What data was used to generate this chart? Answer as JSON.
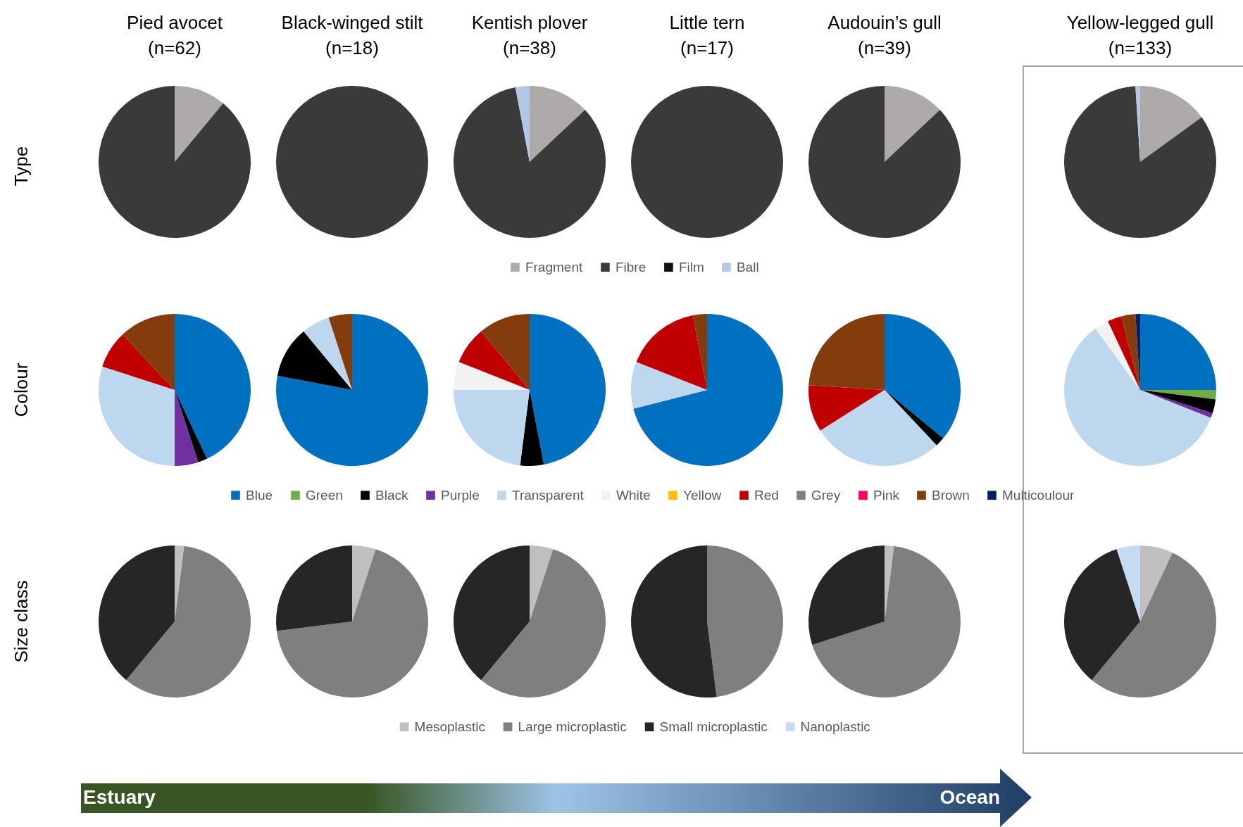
{
  "chart_data": [
    {
      "type": "pie",
      "ylabel": "Type",
      "legend": "bottom",
      "categories": [
        "Fragment",
        "Fibre",
        "Film",
        "Ball"
      ],
      "colors": [
        "#aeaaaa",
        "#3a3a3a",
        "#111111",
        "#b4c7e7"
      ],
      "series": [
        {
          "name": "Pied avocet (n=62)",
          "values": [
            11,
            89,
            0,
            0
          ]
        },
        {
          "name": "Black-winged stilt (n=18)",
          "values": [
            0,
            100,
            0,
            0
          ]
        },
        {
          "name": "Kentish plover (n=38)",
          "values": [
            13,
            84,
            0,
            3
          ]
        },
        {
          "name": "Little tern (n=17)",
          "values": [
            0,
            100,
            0,
            0
          ]
        },
        {
          "name": "Audouin’s gull (n=39)",
          "values": [
            13,
            87,
            0,
            0
          ]
        },
        {
          "name": "Yellow-legged gull (n=133)",
          "values": [
            15,
            84,
            0,
            1
          ]
        }
      ]
    },
    {
      "type": "pie",
      "ylabel": "Colour",
      "legend": "bottom",
      "categories": [
        "Blue",
        "Green",
        "Black",
        "Purple",
        "Transparent",
        "White",
        "Yellow",
        "Red",
        "Grey",
        "Pink",
        "Brown",
        "Multicoulour"
      ],
      "colors": [
        "#0070c0",
        "#70ad47",
        "#000000",
        "#7030a0",
        "#bdd7ee",
        "#f2f2f2",
        "#ffc000",
        "#c00000",
        "#808080",
        "#ff0066",
        "#843c0c",
        "#002060"
      ],
      "series": [
        {
          "values": [
            43,
            0,
            2,
            5,
            30,
            0,
            0,
            8,
            0,
            0,
            12,
            0
          ]
        },
        {
          "values": [
            78,
            0,
            11,
            0,
            6,
            0,
            0,
            0,
            0,
            0,
            5,
            0
          ]
        },
        {
          "values": [
            47,
            0,
            5,
            0,
            23,
            6,
            0,
            8,
            0,
            0,
            11,
            0
          ]
        },
        {
          "values": [
            71,
            0,
            0,
            0,
            10,
            0,
            0,
            16,
            0,
            0,
            3,
            0
          ]
        },
        {
          "values": [
            36,
            0,
            2,
            0,
            28,
            0,
            0,
            10,
            0,
            0,
            24,
            0
          ]
        },
        {
          "values": [
            25,
            2,
            3,
            1,
            59,
            3,
            0,
            3,
            0,
            0,
            3,
            1
          ]
        }
      ]
    },
    {
      "type": "pie",
      "ylabel": "Size class",
      "legend": "bottom",
      "categories": [
        "Mesoplastic",
        "Large microplastic",
        "Small microplastic",
        "Nanoplastic"
      ],
      "colors": [
        "#bfbfbf",
        "#7f7f7f",
        "#262626",
        "#c5dcf0"
      ],
      "series": [
        {
          "values": [
            2,
            59,
            39,
            0
          ]
        },
        {
          "values": [
            5,
            68,
            27,
            0
          ]
        },
        {
          "values": [
            5,
            56,
            39,
            0
          ]
        },
        {
          "values": [
            0,
            48,
            52,
            0
          ]
        },
        {
          "values": [
            2,
            68,
            30,
            0
          ]
        },
        {
          "values": [
            7,
            54,
            34,
            5
          ]
        }
      ],
      "annotations": [
        "Estuary",
        "Ocean"
      ]
    }
  ]
}
